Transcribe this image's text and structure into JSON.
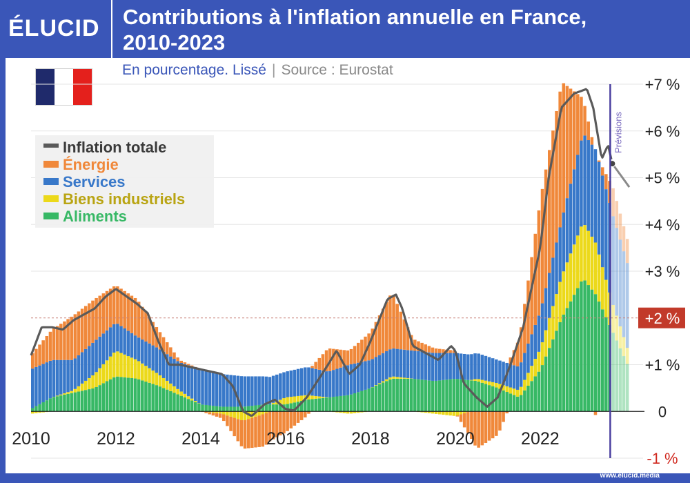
{
  "header": {
    "logo": "ÉLUCID",
    "title_line1": "Contributions à l'inflation annuelle en France,",
    "title_line2": "2010-2023"
  },
  "subtitle": {
    "text": "En pourcentage. Lissé",
    "separator": "|",
    "source": "Source : Eurostat"
  },
  "flag": {
    "colors": [
      "#1f2a6b",
      "#ffffff",
      "#e4201c"
    ]
  },
  "footer": {
    "text": "www.elucid.media"
  },
  "colors": {
    "energie": "#f0883a",
    "services": "#3878c9",
    "biens": "#ecd91a",
    "aliments": "#37b865",
    "total": "#5a5a5a",
    "forecast_line": "#4a3fa0",
    "highlight": "#c23a2a"
  },
  "chart_data": {
    "type": "bar",
    "title": "Contributions à l'inflation annuelle en France, 2010-2023",
    "ylim": [
      -1,
      7
    ],
    "x_range": [
      2010,
      2024.1
    ],
    "forecast_start": 2023.7,
    "forecast_label": "Prévisions",
    "reference_line": 2,
    "reference_label": "+2 %",
    "x_ticks": [
      "2010",
      "2012",
      "2014",
      "2016",
      "2018",
      "2020",
      "2022"
    ],
    "y_ticks": [
      {
        "value": 7,
        "label": "+7 %"
      },
      {
        "value": 6,
        "label": "+6 %"
      },
      {
        "value": 5,
        "label": "+5 %"
      },
      {
        "value": 4,
        "label": "+4 %"
      },
      {
        "value": 3,
        "label": "+3 %"
      },
      {
        "value": 2,
        "label": "+2 %"
      },
      {
        "value": 1,
        "label": "+1 %"
      },
      {
        "value": 0,
        "label": "0"
      },
      {
        "value": -1,
        "label": "-1 %"
      }
    ],
    "legend": [
      {
        "key": "total",
        "label": "Inflation totale",
        "color": "#5a5a5a"
      },
      {
        "key": "energie",
        "label": "Énergie",
        "color": "#f0883a"
      },
      {
        "key": "services",
        "label": "Services",
        "color": "#3878c9"
      },
      {
        "key": "biens",
        "label": "Biens industriels",
        "color": "#c9b318"
      },
      {
        "key": "aliments",
        "label": "Aliments",
        "color": "#37b865"
      }
    ],
    "legend_position": "upper-left",
    "series_keypoints": {
      "aliments": [
        [
          2010,
          0.05
        ],
        [
          2010.5,
          0.3
        ],
        [
          2011,
          0.4
        ],
        [
          2011.5,
          0.5
        ],
        [
          2012,
          0.75
        ],
        [
          2012.5,
          0.7
        ],
        [
          2013,
          0.55
        ],
        [
          2013.5,
          0.35
        ],
        [
          2014,
          0.15
        ],
        [
          2014.5,
          0.1
        ],
        [
          2015,
          0.1
        ],
        [
          2015.5,
          0.15
        ],
        [
          2016,
          0.15
        ],
        [
          2016.5,
          0.25
        ],
        [
          2017,
          0.3
        ],
        [
          2017.5,
          0.35
        ],
        [
          2018,
          0.5
        ],
        [
          2018.5,
          0.7
        ],
        [
          2019,
          0.7
        ],
        [
          2019.5,
          0.65
        ],
        [
          2020,
          0.7
        ],
        [
          2020.5,
          0.65
        ],
        [
          2021,
          0.5
        ],
        [
          2021.5,
          0.3
        ],
        [
          2022,
          0.9
        ],
        [
          2022.5,
          2.0
        ],
        [
          2023,
          2.85
        ],
        [
          2023.3,
          2.5
        ],
        [
          2023.7,
          1.7
        ],
        [
          2024.1,
          0.9
        ]
      ],
      "biens": [
        [
          2010,
          -0.05
        ],
        [
          2010.5,
          0.0
        ],
        [
          2011,
          0.05
        ],
        [
          2011.5,
          0.3
        ],
        [
          2012,
          0.55
        ],
        [
          2012.5,
          0.4
        ],
        [
          2013,
          0.25
        ],
        [
          2013.5,
          0.1
        ],
        [
          2014,
          0.0
        ],
        [
          2014.5,
          -0.05
        ],
        [
          2015,
          -0.2
        ],
        [
          2015.5,
          -0.05
        ],
        [
          2016,
          0.15
        ],
        [
          2016.5,
          0.1
        ],
        [
          2017,
          0.0
        ],
        [
          2017.5,
          -0.05
        ],
        [
          2018,
          0.0
        ],
        [
          2018.5,
          0.05
        ],
        [
          2019,
          0.0
        ],
        [
          2019.5,
          -0.05
        ],
        [
          2020,
          -0.1
        ],
        [
          2020.5,
          0.05
        ],
        [
          2021,
          0.1
        ],
        [
          2021.5,
          0.15
        ],
        [
          2022,
          0.45
        ],
        [
          2022.5,
          0.9
        ],
        [
          2023,
          1.2
        ],
        [
          2023.3,
          1.1
        ],
        [
          2023.7,
          0.6
        ],
        [
          2024.1,
          0.3
        ]
      ],
      "services": [
        [
          2010,
          0.85
        ],
        [
          2010.5,
          0.8
        ],
        [
          2011,
          0.65
        ],
        [
          2011.5,
          0.7
        ],
        [
          2012,
          0.6
        ],
        [
          2012.5,
          0.5
        ],
        [
          2013,
          0.55
        ],
        [
          2013.5,
          0.6
        ],
        [
          2014,
          0.75
        ],
        [
          2014.5,
          0.7
        ],
        [
          2015,
          0.65
        ],
        [
          2015.5,
          0.6
        ],
        [
          2016,
          0.55
        ],
        [
          2016.5,
          0.6
        ],
        [
          2017,
          0.55
        ],
        [
          2017.5,
          0.65
        ],
        [
          2018,
          0.6
        ],
        [
          2018.5,
          0.6
        ],
        [
          2019,
          0.6
        ],
        [
          2019.5,
          0.6
        ],
        [
          2020,
          0.55
        ],
        [
          2020.5,
          0.55
        ],
        [
          2021,
          0.5
        ],
        [
          2021.5,
          0.5
        ],
        [
          2022,
          0.8
        ],
        [
          2022.5,
          1.2
        ],
        [
          2023,
          1.9
        ],
        [
          2023.3,
          2.0
        ],
        [
          2023.7,
          1.9
        ],
        [
          2024.1,
          1.8
        ]
      ],
      "energie": [
        [
          2010,
          0.3
        ],
        [
          2010.5,
          0.65
        ],
        [
          2011,
          0.95
        ],
        [
          2011.5,
          0.9
        ],
        [
          2012,
          0.8
        ],
        [
          2012.5,
          0.8
        ],
        [
          2013,
          0.4
        ],
        [
          2013.5,
          0.05
        ],
        [
          2014,
          0.0
        ],
        [
          2014.5,
          -0.1
        ],
        [
          2015,
          -0.6
        ],
        [
          2015.5,
          -0.7
        ],
        [
          2016,
          -0.45
        ],
        [
          2016.5,
          -0.1
        ],
        [
          2017,
          0.5
        ],
        [
          2017.5,
          0.3
        ],
        [
          2018,
          0.6
        ],
        [
          2018.5,
          1.2
        ],
        [
          2019,
          0.25
        ],
        [
          2019.5,
          0.1
        ],
        [
          2020,
          0.05
        ],
        [
          2020.5,
          -0.8
        ],
        [
          2021,
          -0.5
        ],
        [
          2021.5,
          0.6
        ],
        [
          2022,
          2.4
        ],
        [
          2022.5,
          2.95
        ],
        [
          2023,
          0.75
        ],
        [
          2023.3,
          -0.1
        ],
        [
          2023.7,
          0.6
        ],
        [
          2024.1,
          0.5
        ]
      ],
      "total": [
        [
          2010,
          1.2
        ],
        [
          2010.25,
          1.8
        ],
        [
          2010.5,
          1.8
        ],
        [
          2010.75,
          1.75
        ],
        [
          2011,
          1.95
        ],
        [
          2011.5,
          2.2
        ],
        [
          2011.75,
          2.45
        ],
        [
          2012,
          2.62
        ],
        [
          2012.5,
          2.3
        ],
        [
          2012.75,
          2.1
        ],
        [
          2013,
          1.5
        ],
        [
          2013.25,
          1.0
        ],
        [
          2013.5,
          1.0
        ],
        [
          2014,
          0.9
        ],
        [
          2014.5,
          0.8
        ],
        [
          2014.75,
          0.55
        ],
        [
          2015,
          0.0
        ],
        [
          2015.2,
          -0.1
        ],
        [
          2015.5,
          0.15
        ],
        [
          2015.75,
          0.25
        ],
        [
          2016,
          0.05
        ],
        [
          2016.2,
          0.02
        ],
        [
          2016.5,
          0.3
        ],
        [
          2017,
          1.0
        ],
        [
          2017.2,
          1.3
        ],
        [
          2017.5,
          0.8
        ],
        [
          2017.75,
          1.0
        ],
        [
          2018,
          1.5
        ],
        [
          2018.4,
          2.4
        ],
        [
          2018.6,
          2.5
        ],
        [
          2018.75,
          2.2
        ],
        [
          2019,
          1.4
        ],
        [
          2019.3,
          1.25
        ],
        [
          2019.6,
          1.1
        ],
        [
          2019.9,
          1.4
        ],
        [
          2020,
          1.3
        ],
        [
          2020.2,
          0.6
        ],
        [
          2020.5,
          0.3
        ],
        [
          2020.75,
          0.1
        ],
        [
          2021,
          0.3
        ],
        [
          2021.3,
          1.0
        ],
        [
          2021.6,
          1.8
        ],
        [
          2022,
          3.5
        ],
        [
          2022.2,
          5.0
        ],
        [
          2022.5,
          6.5
        ],
        [
          2022.8,
          6.8
        ],
        [
          2023.1,
          6.9
        ],
        [
          2023.25,
          6.5
        ],
        [
          2023.45,
          5.4
        ],
        [
          2023.6,
          5.7
        ],
        [
          2023.7,
          5.3
        ],
        [
          2024.1,
          4.8
        ]
      ]
    }
  }
}
